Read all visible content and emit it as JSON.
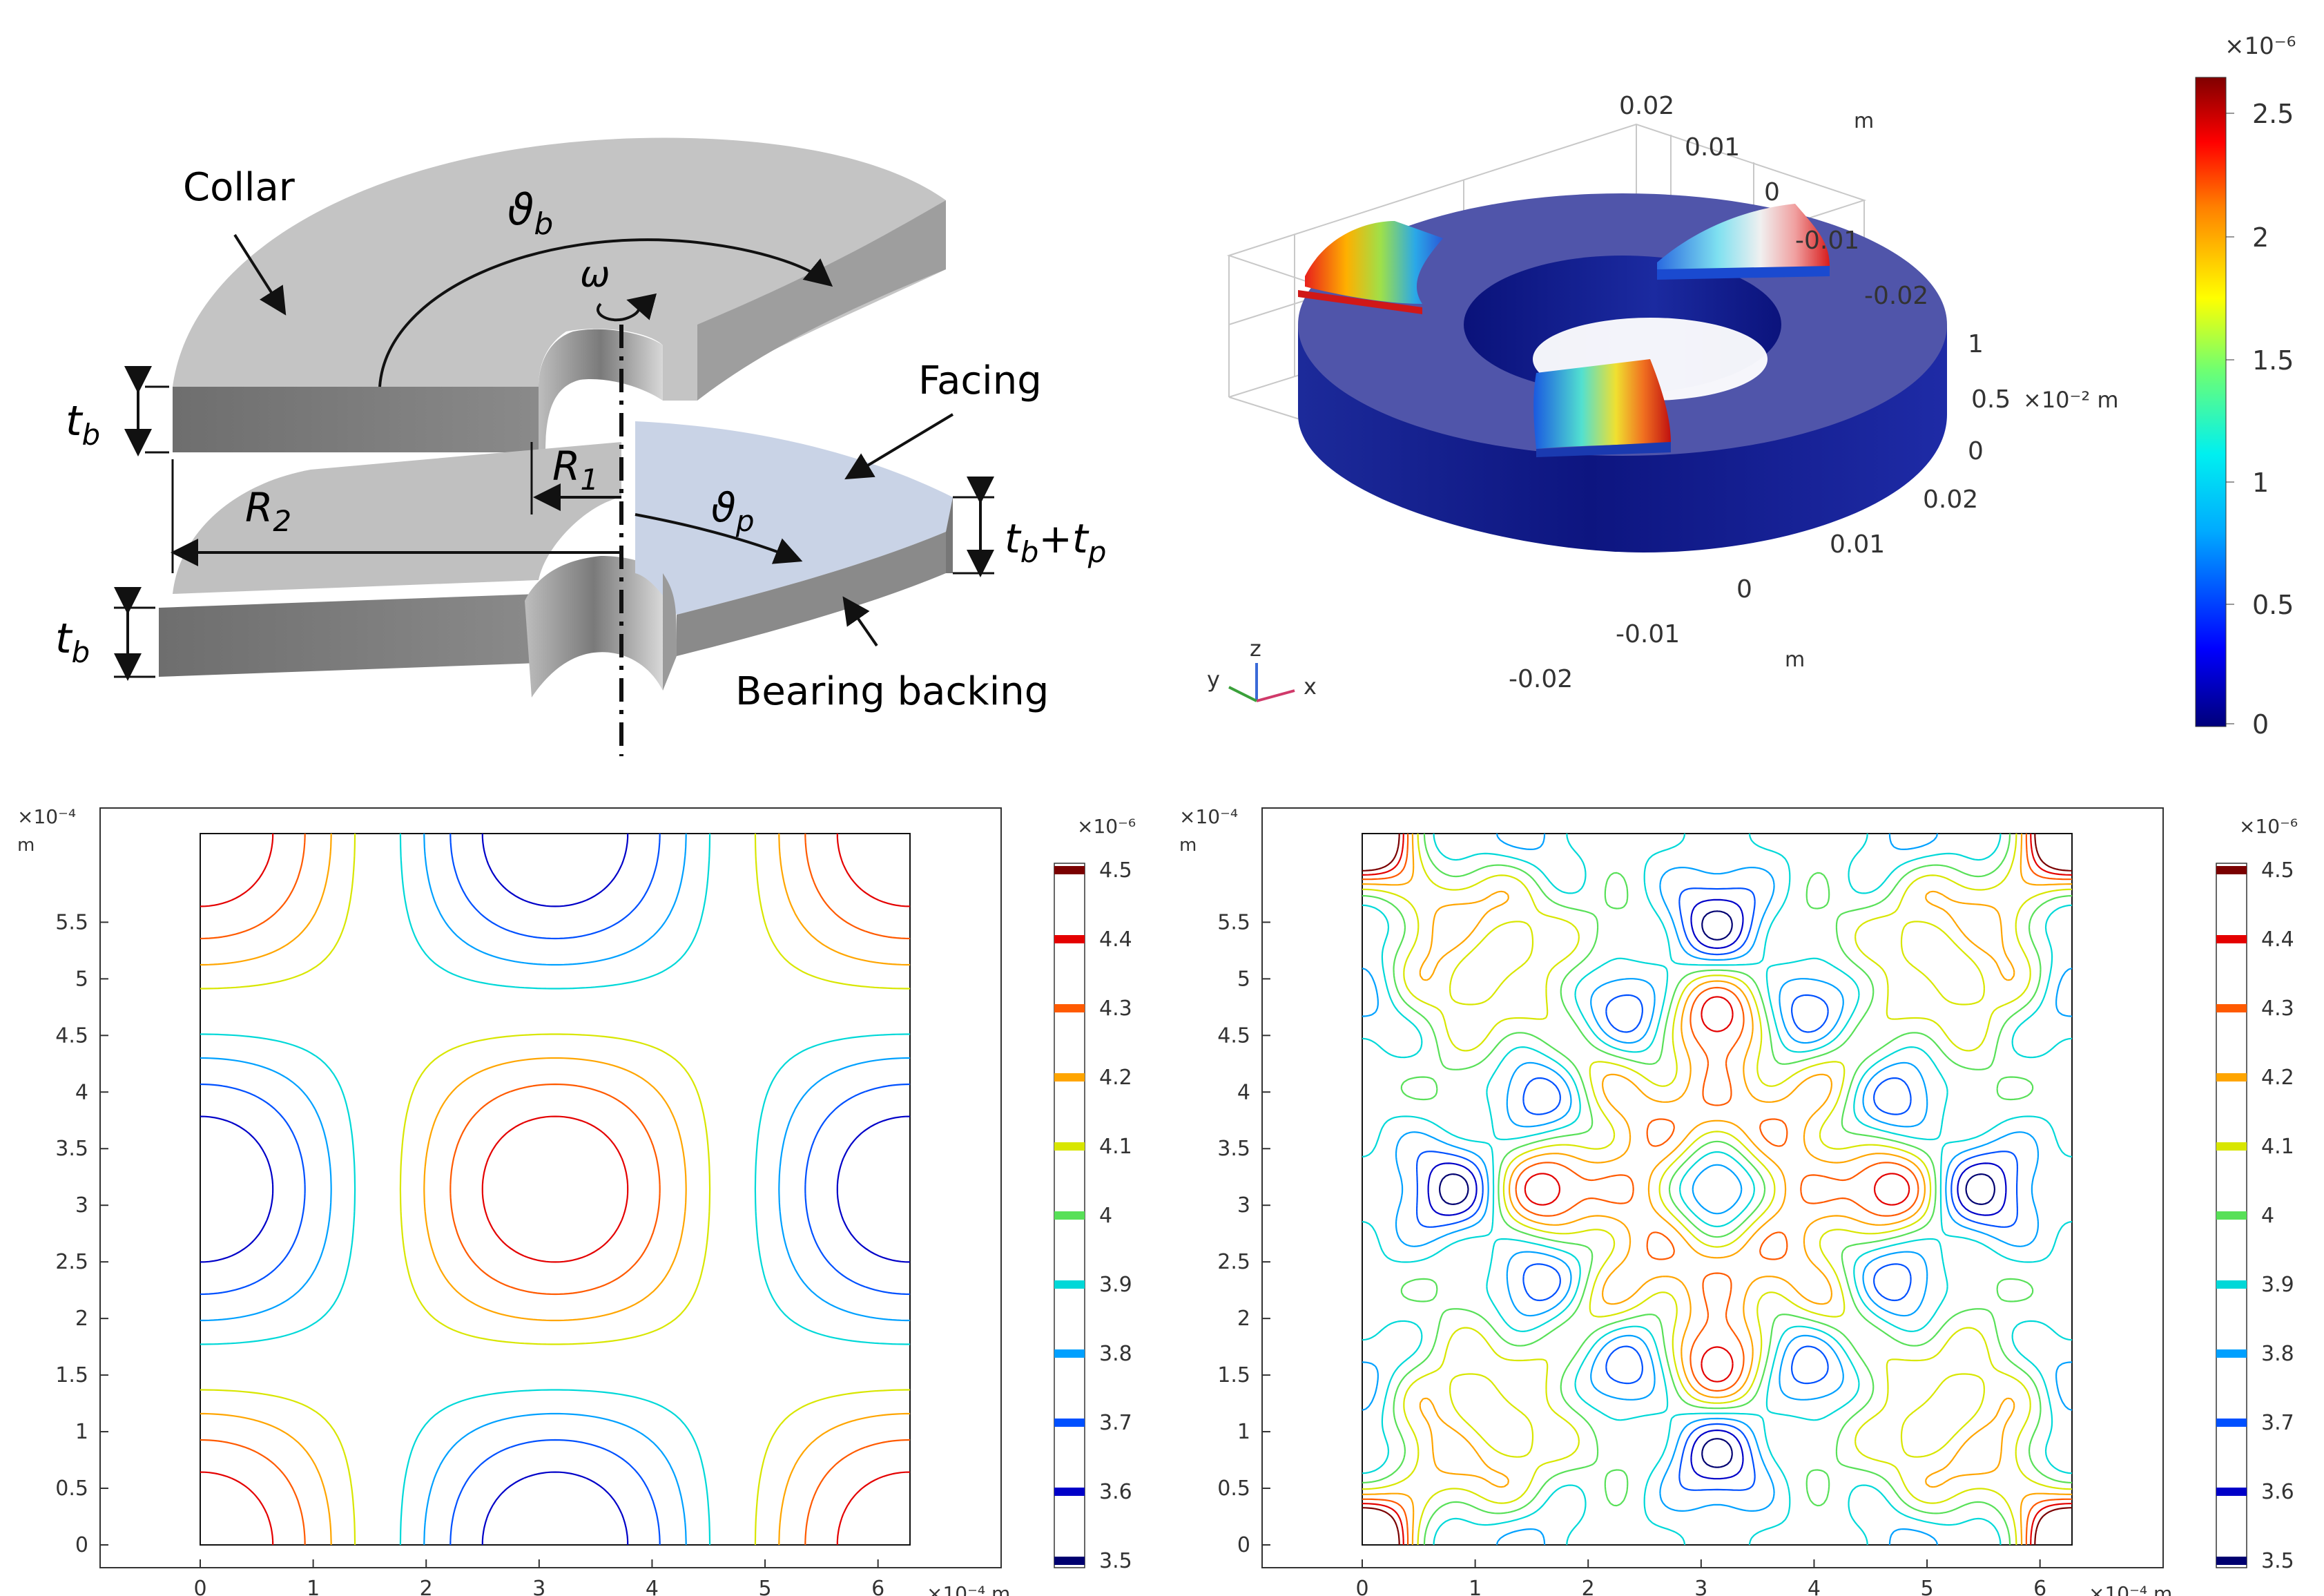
{
  "schematic": {
    "collar": "Collar",
    "facing": "Facing",
    "backing": "Bearing backing",
    "theta_b": "ϑ",
    "theta_b_sub": "b",
    "theta_p": "ϑ",
    "theta_p_sub": "p",
    "omega": "ω",
    "t": "t",
    "t_sub": "b",
    "R1": "R",
    "R1_sub": "1",
    "R2": "R",
    "R2_sub": "2",
    "tbtp_t1": "t",
    "tbtp_sub1": "b",
    "tbtp_plus": "+t",
    "tbtp_sub2": "p"
  },
  "view3d": {
    "ticks_top": [
      "0.02",
      "0.01",
      "0",
      "-0.01",
      "-0.02"
    ],
    "unit_m": "m",
    "ticks_z": [
      "1",
      "0.5",
      "0"
    ],
    "z_unit": "×10⁻² m",
    "ticks_front": [
      "0.02",
      "0.01",
      "0",
      "-0.01",
      "-0.02"
    ],
    "triad": {
      "x": "x",
      "y": "y",
      "z": "z"
    },
    "colorbar": {
      "exponent": "×10⁻⁶",
      "ticks": [
        "2.5",
        "2",
        "1.5",
        "1",
        "0.5",
        "0"
      ]
    }
  },
  "contour_left": {
    "y_exponent": "×10⁻⁴",
    "unit": "m",
    "y_ticks": [
      "5.5",
      "5",
      "4.5",
      "4",
      "3.5",
      "3",
      "2.5",
      "2",
      "1.5",
      "1",
      "0.5",
      "0"
    ],
    "x_ticks": [
      "0",
      "1",
      "2",
      "3",
      "4",
      "5",
      "6"
    ],
    "x_exponent": "×10⁻⁴ m",
    "colorbar": {
      "exponent": "×10⁻⁶",
      "levels": [
        "4.5",
        "4.4",
        "4.3",
        "4.2",
        "4.1",
        "4",
        "3.9",
        "3.8",
        "3.7",
        "3.6",
        "3.5"
      ],
      "colors": [
        "#7a0000",
        "#e40000",
        "#ff5a00",
        "#ffa500",
        "#d8e600",
        "#58e058",
        "#00d8d8",
        "#00a0ff",
        "#0050ff",
        "#0000c8",
        "#000070"
      ]
    }
  },
  "contour_right": {
    "y_exponent": "×10⁻⁴",
    "unit": "m",
    "y_ticks": [
      "5.5",
      "5",
      "4.5",
      "4",
      "3.5",
      "3",
      "2.5",
      "2",
      "1.5",
      "1",
      "0.5",
      "0"
    ],
    "x_ticks": [
      "0",
      "1",
      "2",
      "3",
      "4",
      "5",
      "6"
    ],
    "x_exponent": "×10⁻⁴ m",
    "colorbar": {
      "exponent": "×10⁻⁶",
      "levels": [
        "4.5",
        "4.4",
        "4.3",
        "4.2",
        "4.1",
        "4",
        "3.9",
        "3.8",
        "3.7",
        "3.6",
        "3.5"
      ],
      "colors": [
        "#7a0000",
        "#e40000",
        "#ff5a00",
        "#ffa500",
        "#d8e600",
        "#58e058",
        "#00d8d8",
        "#00a0ff",
        "#0050ff",
        "#0000c8",
        "#000070"
      ]
    }
  }
}
